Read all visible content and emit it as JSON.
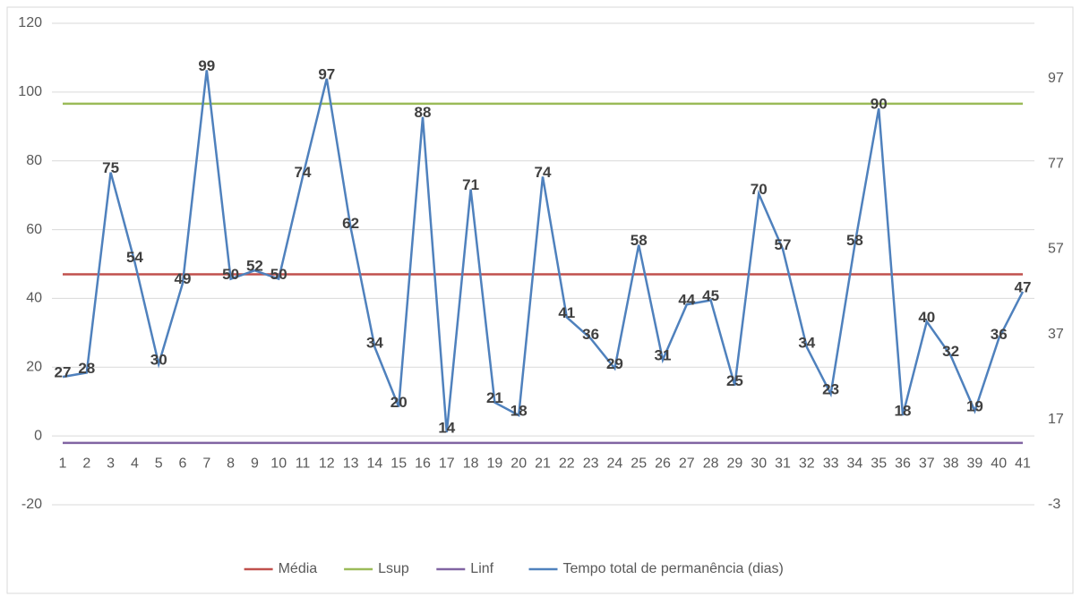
{
  "chart_data": {
    "type": "line",
    "categories": [
      "1",
      "2",
      "3",
      "4",
      "5",
      "6",
      "7",
      "8",
      "9",
      "10",
      "11",
      "12",
      "13",
      "14",
      "15",
      "16",
      "17",
      "18",
      "19",
      "20",
      "21",
      "22",
      "23",
      "24",
      "25",
      "26",
      "27",
      "28",
      "29",
      "30",
      "31",
      "32",
      "33",
      "34",
      "35",
      "36",
      "37",
      "38",
      "39",
      "40",
      "41"
    ],
    "series": [
      {
        "name": "Média",
        "color": "#c0504d",
        "values": [
          47,
          47,
          47,
          47,
          47,
          47,
          47,
          47,
          47,
          47,
          47,
          47,
          47,
          47,
          47,
          47,
          47,
          47,
          47,
          47,
          47,
          47,
          47,
          47,
          47,
          47,
          47,
          47,
          47,
          47,
          47,
          47,
          47,
          47,
          47,
          47,
          47,
          47,
          47,
          47,
          47
        ]
      },
      {
        "name": "Lsup",
        "color": "#9bbb59",
        "values": [
          96.6,
          96.6,
          96.6,
          96.6,
          96.6,
          96.6,
          96.6,
          96.6,
          96.6,
          96.6,
          96.6,
          96.6,
          96.6,
          96.6,
          96.6,
          96.6,
          96.6,
          96.6,
          96.6,
          96.6,
          96.6,
          96.6,
          96.6,
          96.6,
          96.6,
          96.6,
          96.6,
          96.6,
          96.6,
          96.6,
          96.6,
          96.6,
          96.6,
          96.6,
          96.6,
          96.6,
          96.6,
          96.6,
          96.6,
          96.6,
          96.6
        ]
      },
      {
        "name": "Linf",
        "color": "#8064a2",
        "values": [
          -2,
          -2,
          -2,
          -2,
          -2,
          -2,
          -2,
          -2,
          -2,
          -2,
          -2,
          -2,
          -2,
          -2,
          -2,
          -2,
          -2,
          -2,
          -2,
          -2,
          -2,
          -2,
          -2,
          -2,
          -2,
          -2,
          -2,
          -2,
          -2,
          -2,
          -2,
          -2,
          -2,
          -2,
          -2,
          -2,
          -2,
          -2,
          -2,
          -2,
          -2
        ]
      },
      {
        "name": "Tempo total de permanência (dias)",
        "color": "#4f81bd",
        "axis": "y2",
        "data_labels": true,
        "values": [
          27,
          28,
          75,
          54,
          30,
          49,
          99,
          50,
          52,
          50,
          74,
          97,
          62,
          34,
          20,
          88,
          14,
          71,
          21,
          18,
          74,
          41,
          36,
          29,
          58,
          31,
          44,
          45,
          25,
          70,
          57,
          34,
          23,
          58,
          90,
          18,
          40,
          32,
          19,
          36,
          47
        ]
      }
    ],
    "ylim": [
      -20,
      120
    ],
    "yticks": [
      -20,
      0,
      20,
      40,
      60,
      80,
      100,
      120
    ],
    "y2lim": [
      -3,
      110
    ],
    "y2ticks": [
      -3,
      17,
      37,
      57,
      77,
      97
    ],
    "grid": true,
    "legend": "bottom"
  }
}
